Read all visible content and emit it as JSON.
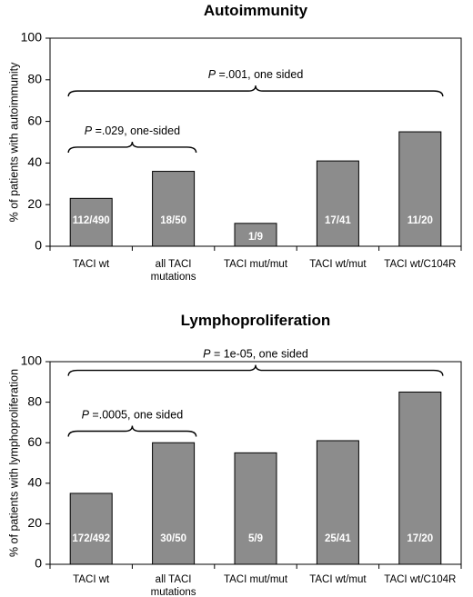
{
  "chart_data": [
    {
      "type": "bar",
      "title": "Autoimmunity",
      "ylabel": "% of patients with autoimmunity",
      "ylim": [
        0,
        100
      ],
      "yticks": [
        "0",
        "20",
        "40",
        "60",
        "80",
        "100"
      ],
      "categories": [
        [
          "TACI wt"
        ],
        [
          "all TACI",
          "mutations"
        ],
        [
          "TACI mut/mut"
        ],
        [
          "TACI wt/mut"
        ],
        [
          "TACI wt/C104R"
        ]
      ],
      "values": [
        23,
        36,
        11,
        41,
        55
      ],
      "bar_labels": [
        "112/490",
        "18/50",
        "1/9",
        "17/41",
        "11/20"
      ],
      "annotations": [
        {
          "p": "P",
          "text": " =.029, one-sided",
          "from_bar": 0,
          "to_bar": 1,
          "level": 45
        },
        {
          "p": "P",
          "text": " =.001, one sided",
          "from_bar": 0,
          "to_bar": 4,
          "level": 72
        }
      ],
      "grid": false,
      "bar_color": "#8c8c8c"
    },
    {
      "type": "bar",
      "title": "Lymphoproliferation",
      "ylabel": "% of patients with lymphoproliferation",
      "ylim": [
        0,
        100
      ],
      "yticks": [
        "0",
        "20",
        "40",
        "60",
        "80",
        "100"
      ],
      "categories": [
        [
          "TACI wt"
        ],
        [
          "all TACI",
          "mutations"
        ],
        [
          "TACI mut/mut"
        ],
        [
          "TACI wt/mut"
        ],
        [
          "TACI wt/C104R"
        ]
      ],
      "values": [
        35,
        60,
        55,
        61,
        85
      ],
      "bar_labels": [
        "172/492",
        "30/50",
        "5/9",
        "25/41",
        "17/20"
      ],
      "annotations": [
        {
          "p": "P",
          "text": " =.0005, one sided",
          "from_bar": 0,
          "to_bar": 1,
          "level": 63
        },
        {
          "p": "P",
          "text": " = 1e-05, one sided",
          "from_bar": 0,
          "to_bar": 4,
          "level": 93
        }
      ],
      "grid": false,
      "bar_color": "#8c8c8c"
    }
  ]
}
